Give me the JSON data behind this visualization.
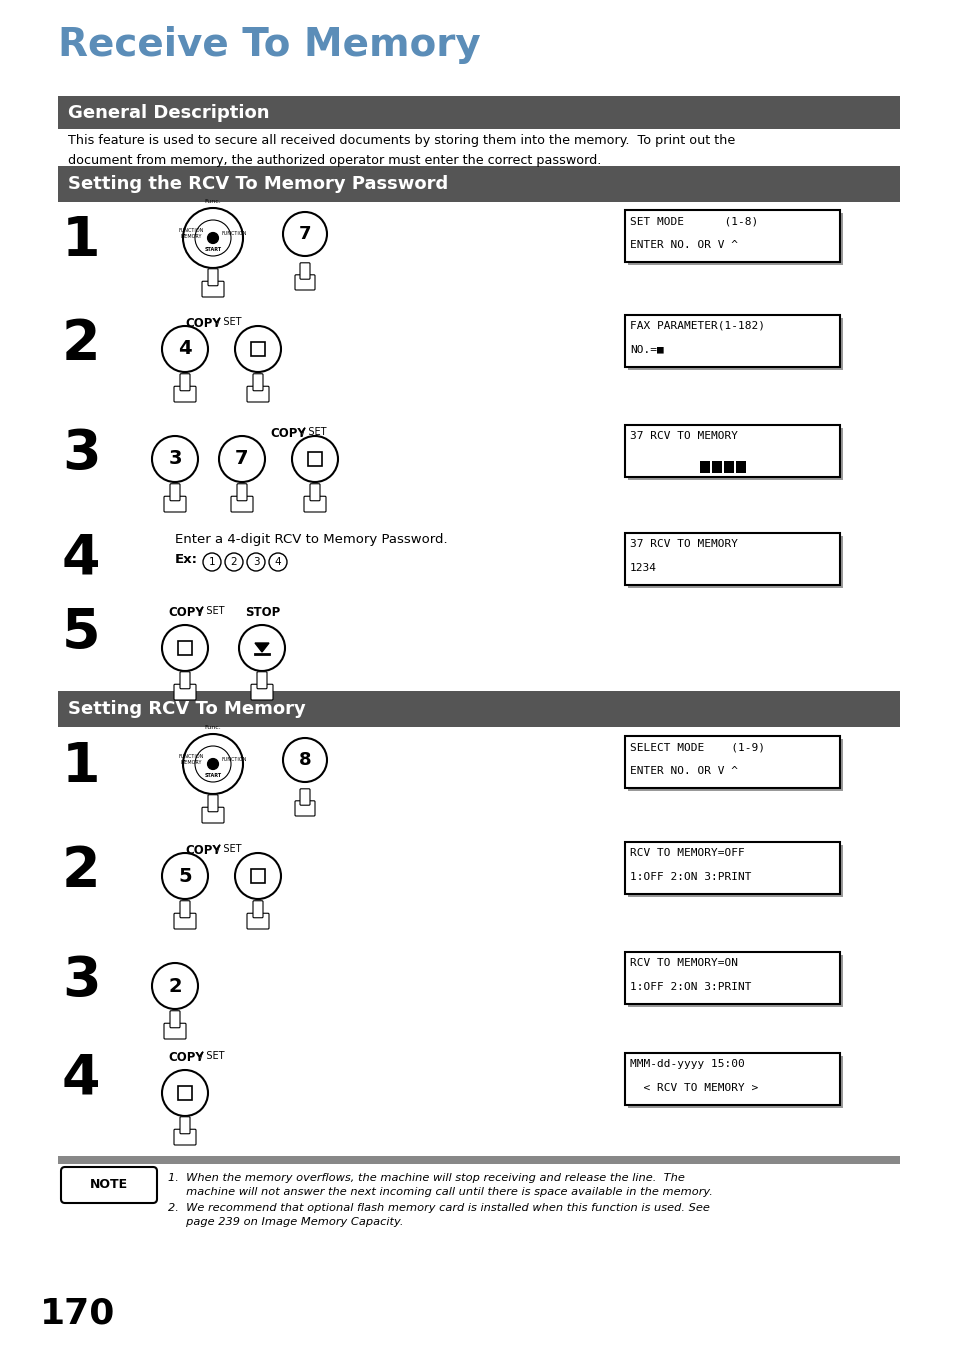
{
  "title": "Receive To Memory",
  "title_color": "#5b8db8",
  "bg_color": "#ffffff",
  "section1_title": "General Description",
  "section1_bg": "#555555",
  "section2_title": "Setting the RCV To Memory Password",
  "section2_bg": "#555555",
  "section3_title": "Setting RCV To Memory",
  "section3_bg": "#555555",
  "header_text_color": "#ffffff",
  "body_text1": "This feature is used to secure all received documents by storing them into the memory.  To print out the\ndocument from memory, the authorized operator must enter the correct password.",
  "step_color": "#000000",
  "display_shadow": "#888888",
  "page_number": "170",
  "note1": "1.  When the memory overflows, the machine will stop receiving and release the line.  The\n     machine will not answer the next incoming call until there is space available in the memory.",
  "note2": "2.  We recommend that optional flash memory card is installed when this function is used. See\n     page 239 on Image Memory Capacity."
}
